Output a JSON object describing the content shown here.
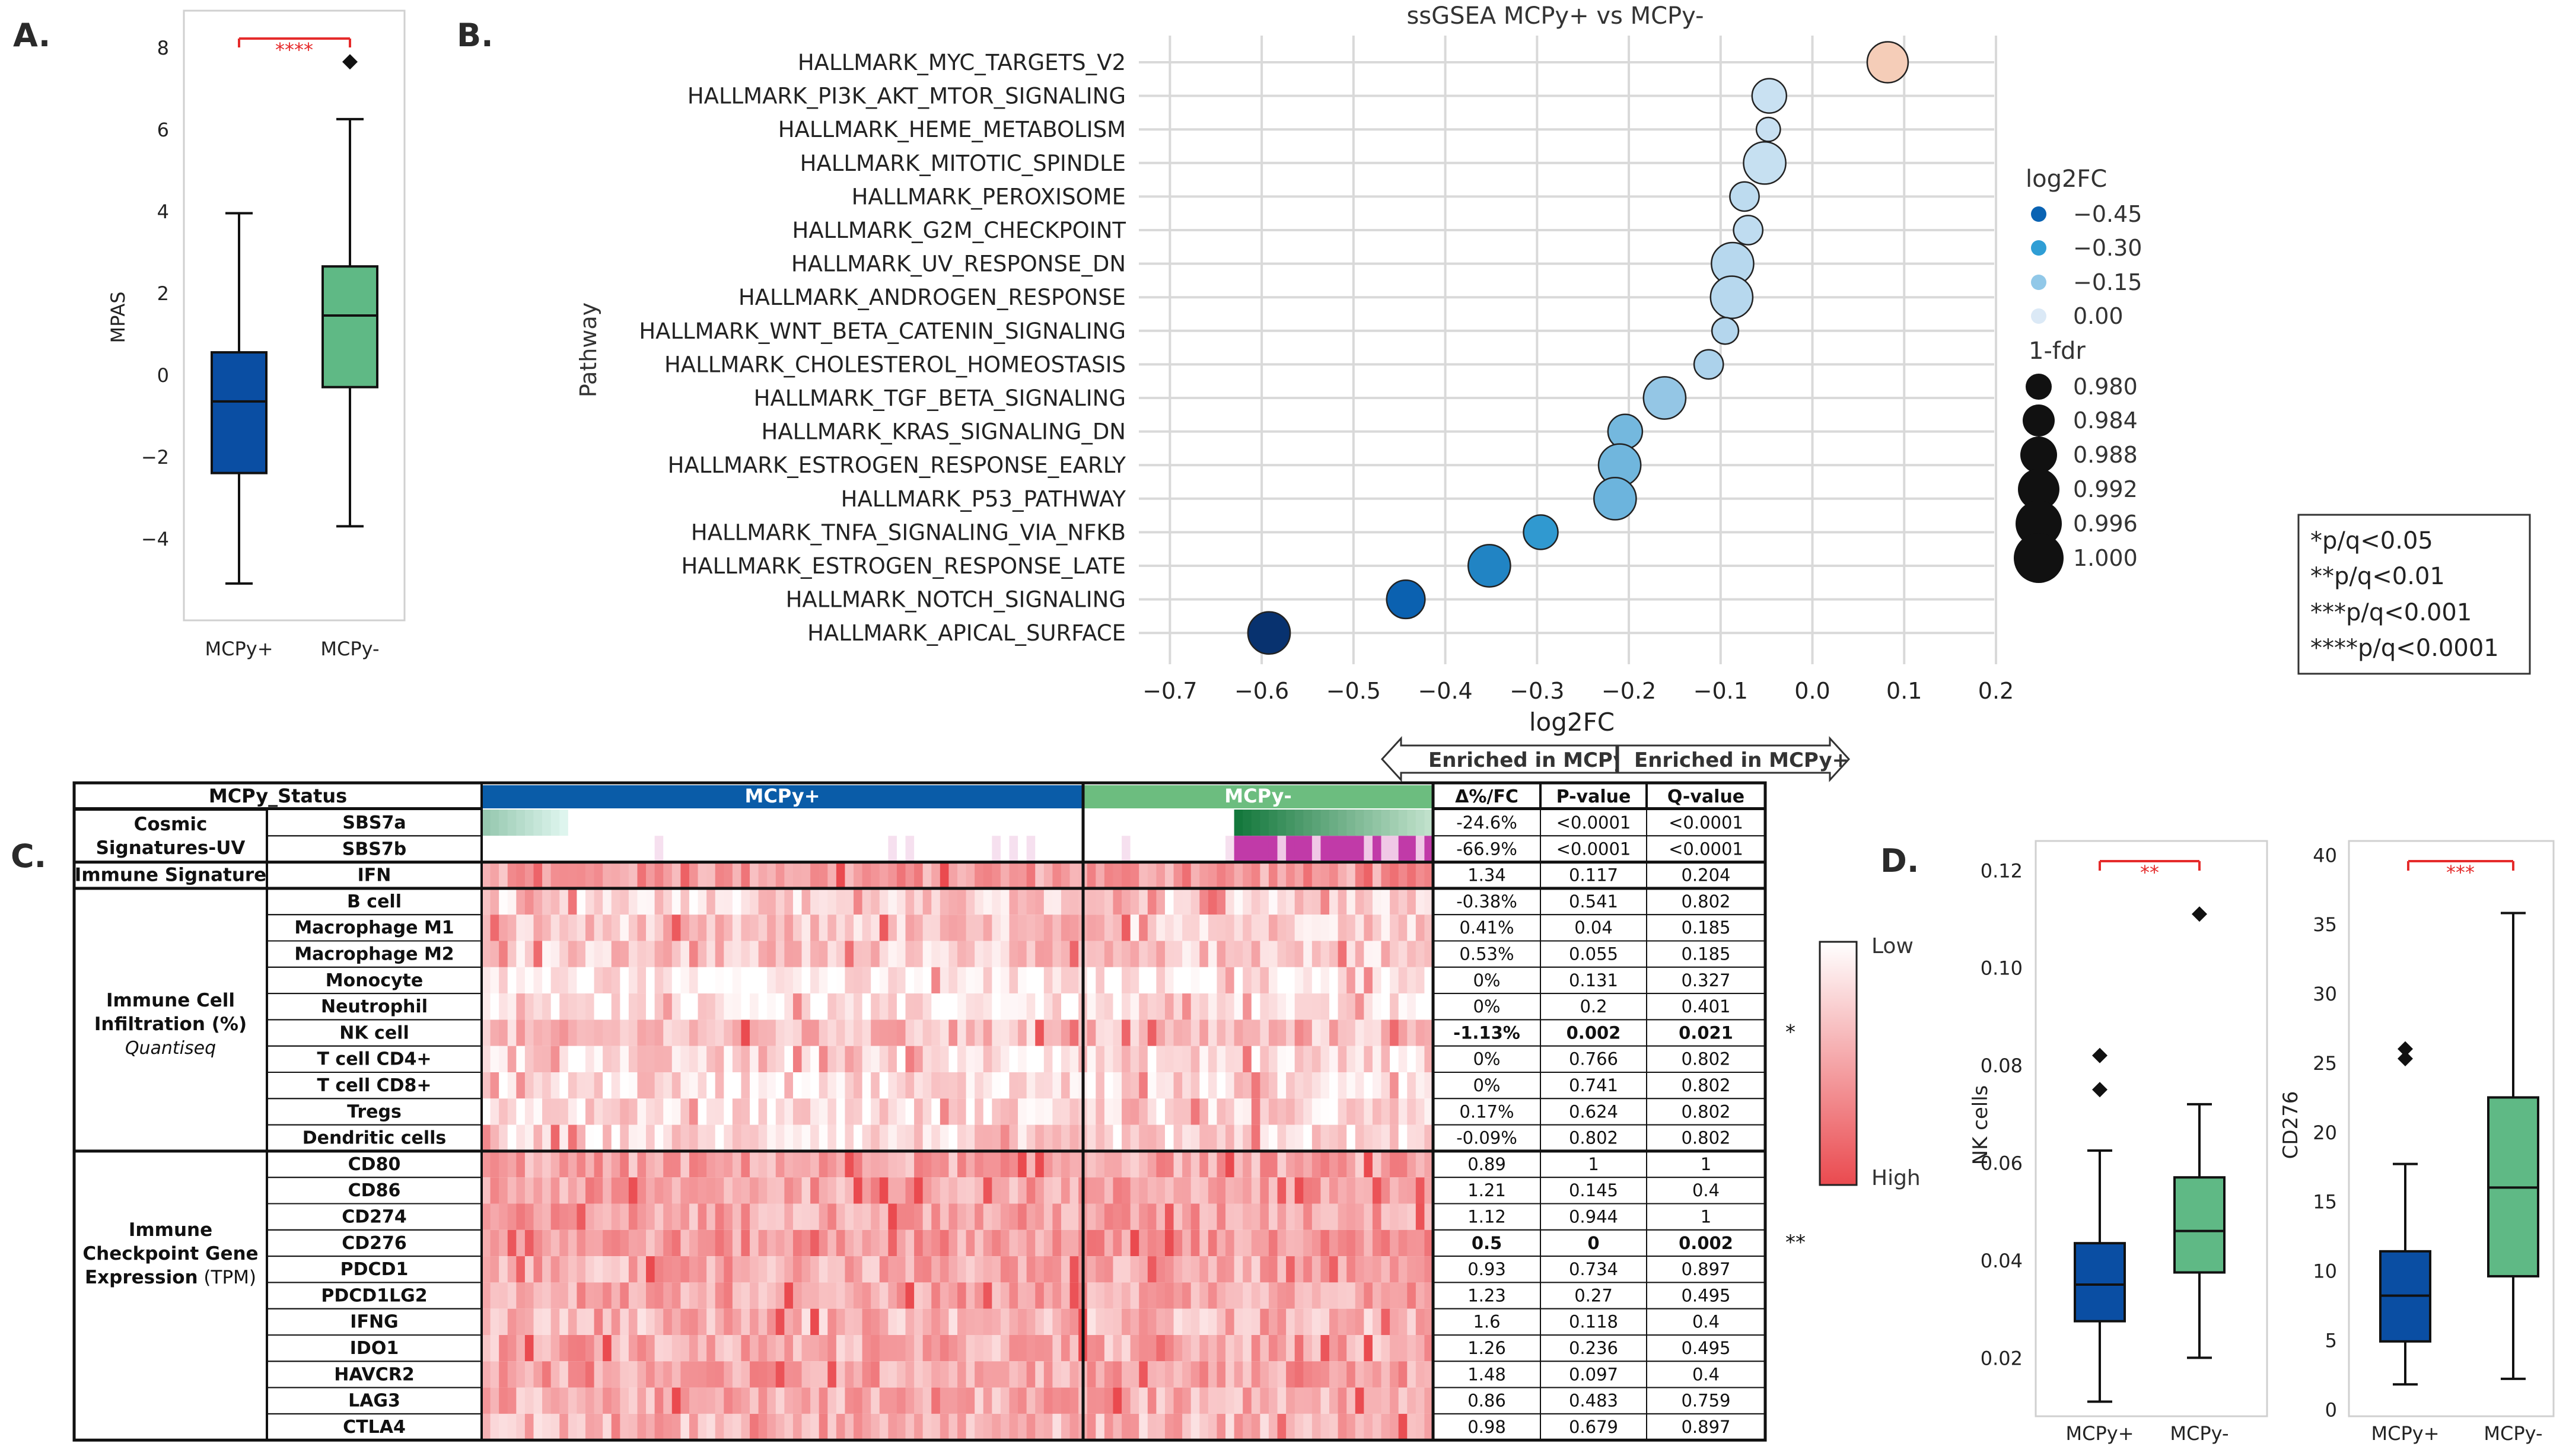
{
  "colors": {
    "mcpy_pos": "#0a4ea3",
    "mcpy_neg": "#5fb985",
    "sig_red": "#e52b2b",
    "heat_high": "#ea4a4f",
    "heat_low": "#ffffff",
    "grid": "#d9d9d9"
  },
  "panelA": {
    "label": "A.",
    "ylabel": "MPAS",
    "xticks": [
      "MCPy+",
      "MCPy-"
    ],
    "ylim": [
      -6.0,
      8.9
    ],
    "yticks": [
      "8",
      "6",
      "4",
      "2",
      "0",
      "−2",
      "−4"
    ],
    "sig": "****",
    "boxes": [
      {
        "group": "MCPy+",
        "min": -5.1,
        "q1": -2.4,
        "median": -0.65,
        "q3": 0.55,
        "max": 3.95,
        "outliers": []
      },
      {
        "group": "MCPy-",
        "min": -3.7,
        "q1": -0.3,
        "median": 1.45,
        "q3": 2.65,
        "max": 6.25,
        "outliers": [
          7.65
        ]
      }
    ]
  },
  "panelB": {
    "label": "B.",
    "title": "ssGSEA MCPy+ vs MCPy-",
    "xlabel": "log2FC",
    "ylabel": "Pathway",
    "xlim": [
      -0.75,
      0.2
    ],
    "xticks": [
      "−0.7",
      "−0.6",
      "−0.5",
      "−0.4",
      "−0.3",
      "−0.2",
      "−0.1",
      "0.0",
      "0.1",
      "0.2"
    ],
    "legend_color_title": "log2FC",
    "legend_color": [
      "−0.45",
      "−0.30",
      "−0.15",
      "0.00"
    ],
    "legend_size_title": "1-fdr",
    "legend_size": [
      "0.980",
      "0.984",
      "0.988",
      "0.992",
      "0.996",
      "1.000"
    ],
    "enriched_left": "Enriched in MCPy-",
    "enriched_right": "Enriched in MCPy+"
  },
  "chart_data": [
    {
      "type": "box",
      "panel": "A",
      "title": "",
      "xlabel": "",
      "ylabel": "MPAS",
      "categories": [
        "MCPy+",
        "MCPy-"
      ],
      "ylim": [
        -6.0,
        8.9
      ],
      "significance": "****"
    },
    {
      "type": "scatter",
      "panel": "B",
      "title": "ssGSEA MCPy+ vs MCPy-",
      "xlabel": "log2FC",
      "ylabel": "Pathway",
      "categories": [
        "HALLMARK_MYC_TARGETS_V2",
        "HALLMARK_PI3K_AKT_MTOR_SIGNALING",
        "HALLMARK_HEME_METABOLISM",
        "HALLMARK_MITOTIC_SPINDLE",
        "HALLMARK_PEROXISOME",
        "HALLMARK_G2M_CHECKPOINT",
        "HALLMARK_UV_RESPONSE_DN",
        "HALLMARK_ANDROGEN_RESPONSE",
        "HALLMARK_WNT_BETA_CATENIN_SIGNALING",
        "HALLMARK_CHOLESTEROL_HOMEOSTASIS",
        "HALLMARK_TGF_BETA_SIGNALING",
        "HALLMARK_KRAS_SIGNALING_DN",
        "HALLMARK_ESTROGEN_RESPONSE_EARLY",
        "HALLMARK_P53_PATHWAY",
        "HALLMARK_TNFA_SIGNALING_VIA_NFKB",
        "HALLMARK_ESTROGEN_RESPONSE_LATE",
        "HALLMARK_NOTCH_SIGNALING",
        "HALLMARK_APICAL_SURFACE"
      ],
      "log2fc": [
        0.082,
        -0.047,
        -0.048,
        -0.052,
        -0.074,
        -0.07,
        -0.087,
        -0.088,
        -0.095,
        -0.113,
        -0.161,
        -0.204,
        -0.21,
        -0.215,
        -0.296,
        -0.352,
        -0.443,
        -0.592
      ],
      "one_minus_fdr": [
        0.995,
        0.99,
        0.982,
        0.996,
        0.986,
        0.986,
        0.996,
        0.996,
        0.984,
        0.986,
        0.996,
        0.99,
        0.996,
        0.996,
        0.99,
        0.996,
        0.993,
        0.996
      ],
      "xlim": [
        -0.75,
        0.2
      ]
    },
    {
      "type": "heatmap",
      "panel": "C",
      "title": "",
      "groups": [
        "MCPy+",
        "MCPy-"
      ],
      "values": "relative scale Low to High"
    },
    {
      "type": "box",
      "panel": "D",
      "ylabel": "NK cells",
      "categories": [
        "MCPy+",
        "MCPy-"
      ],
      "ylim": [
        0.008,
        0.126
      ],
      "significance": "**"
    },
    {
      "type": "box",
      "panel": "D",
      "ylabel": "CD276",
      "categories": [
        "MCPy+",
        "MCPy-"
      ],
      "ylim": [
        -0.5,
        41
      ],
      "significance": "***"
    }
  ],
  "panelC": {
    "label": "C.",
    "status_header": "MCPy_Status",
    "group_pos": "MCPy+",
    "group_neg": "MCPy-",
    "col_headers": [
      "Δ%/FC",
      "P-value",
      "Q-value"
    ],
    "cat_cosmic": "Cosmic Signatures-UV",
    "cat_immune_sig": "Immune Signature",
    "cat_infiltration": "Immune Cell Infiltration (%)",
    "cat_infiltration_sub": "Quantiseq",
    "cat_checkpoint": "Immune Checkpoint Gene Expression",
    "cat_checkpoint_sub": "(TPM)",
    "rows": [
      {
        "name": "SBS7a",
        "d": "-24.6%",
        "p": "<0.0001",
        "q": "<0.0001",
        "star": "",
        "bold": false
      },
      {
        "name": "SBS7b",
        "d": "-66.9%",
        "p": "<0.0001",
        "q": "<0.0001",
        "star": "",
        "bold": false
      },
      {
        "name": "IFN",
        "d": "1.34",
        "p": "0.117",
        "q": "0.204",
        "star": "",
        "bold": false
      },
      {
        "name": "B cell",
        "d": "-0.38%",
        "p": "0.541",
        "q": "0.802",
        "star": "",
        "bold": false
      },
      {
        "name": "Macrophage M1",
        "d": "0.41%",
        "p": "0.04",
        "q": "0.185",
        "star": "",
        "bold": false
      },
      {
        "name": "Macrophage M2",
        "d": "0.53%",
        "p": "0.055",
        "q": "0.185",
        "star": "",
        "bold": false
      },
      {
        "name": "Monocyte",
        "d": "0%",
        "p": "0.131",
        "q": "0.327",
        "star": "",
        "bold": false
      },
      {
        "name": "Neutrophil",
        "d": "0%",
        "p": "0.2",
        "q": "0.401",
        "star": "",
        "bold": false
      },
      {
        "name": "NK cell",
        "d": "-1.13%",
        "p": "0.002",
        "q": "0.021",
        "star": "*",
        "bold": true
      },
      {
        "name": "T cell CD4+",
        "d": "0%",
        "p": "0.766",
        "q": "0.802",
        "star": "",
        "bold": false
      },
      {
        "name": "T cell CD8+",
        "d": "0%",
        "p": "0.741",
        "q": "0.802",
        "star": "",
        "bold": false
      },
      {
        "name": "Tregs",
        "d": "0.17%",
        "p": "0.624",
        "q": "0.802",
        "star": "",
        "bold": false
      },
      {
        "name": "Dendritic cells",
        "d": "-0.09%",
        "p": "0.802",
        "q": "0.802",
        "star": "",
        "bold": false
      },
      {
        "name": "CD80",
        "d": "0.89",
        "p": "1",
        "q": "1",
        "star": "",
        "bold": false
      },
      {
        "name": "CD86",
        "d": "1.21",
        "p": "0.145",
        "q": "0.4",
        "star": "",
        "bold": false
      },
      {
        "name": "CD274",
        "d": "1.12",
        "p": "0.944",
        "q": "1",
        "star": "",
        "bold": false
      },
      {
        "name": "CD276",
        "d": "0.5",
        "p": "0",
        "q": "0.002",
        "star": "**",
        "bold": true
      },
      {
        "name": "PDCD1",
        "d": "0.93",
        "p": "0.734",
        "q": "0.897",
        "star": "",
        "bold": false
      },
      {
        "name": "PDCD1LG2",
        "d": "1.23",
        "p": "0.27",
        "q": "0.495",
        "star": "",
        "bold": false
      },
      {
        "name": "IFNG",
        "d": "1.6",
        "p": "0.118",
        "q": "0.4",
        "star": "",
        "bold": false
      },
      {
        "name": "IDO1",
        "d": "1.26",
        "p": "0.236",
        "q": "0.495",
        "star": "",
        "bold": false
      },
      {
        "name": "HAVCR2",
        "d": "1.48",
        "p": "0.097",
        "q": "0.4",
        "star": "",
        "bold": false
      },
      {
        "name": "LAG3",
        "d": "0.86",
        "p": "0.483",
        "q": "0.759",
        "star": "",
        "bold": false
      },
      {
        "name": "CTLA4",
        "d": "0.98",
        "p": "0.679",
        "q": "0.897",
        "star": "",
        "bold": false
      }
    ],
    "colorbar_low": "Low",
    "colorbar_high": "High"
  },
  "panelD": {
    "label": "D.",
    "nk": {
      "ylabel": "NK cells",
      "xticks": [
        "MCPy+",
        "MCPy-"
      ],
      "ylim": [
        0.008,
        0.126
      ],
      "yticks": [
        "0.12",
        "0.10",
        "0.08",
        "0.06",
        "0.04",
        "0.02"
      ],
      "sig": "**",
      "boxes": [
        {
          "min": 0.011,
          "q1": 0.0275,
          "median": 0.035,
          "q3": 0.0435,
          "max": 0.0625,
          "outliers": [
            0.082,
            0.075
          ]
        },
        {
          "min": 0.02,
          "q1": 0.0375,
          "median": 0.046,
          "q3": 0.057,
          "max": 0.072,
          "outliers": [
            0.111
          ]
        }
      ]
    },
    "cd276": {
      "ylabel": "CD276",
      "xticks": [
        "MCPy+",
        "MCPy-"
      ],
      "ylim": [
        -0.5,
        41
      ],
      "yticks": [
        "40",
        "35",
        "30",
        "25",
        "20",
        "15",
        "10",
        "5",
        "0"
      ],
      "sig": "***",
      "boxes": [
        {
          "min": 1.8,
          "q1": 4.9,
          "median": 8.2,
          "q3": 11.4,
          "max": 17.7,
          "outliers": [
            26.0,
            25.3
          ]
        },
        {
          "min": 2.2,
          "q1": 9.6,
          "median": 16.0,
          "q3": 22.5,
          "max": 35.8,
          "outliers": []
        }
      ]
    }
  },
  "sig_legend": [
    "*p/q<0.05",
    "**p/q<0.01",
    "***p/q<0.001",
    "****p/q<0.0001"
  ]
}
